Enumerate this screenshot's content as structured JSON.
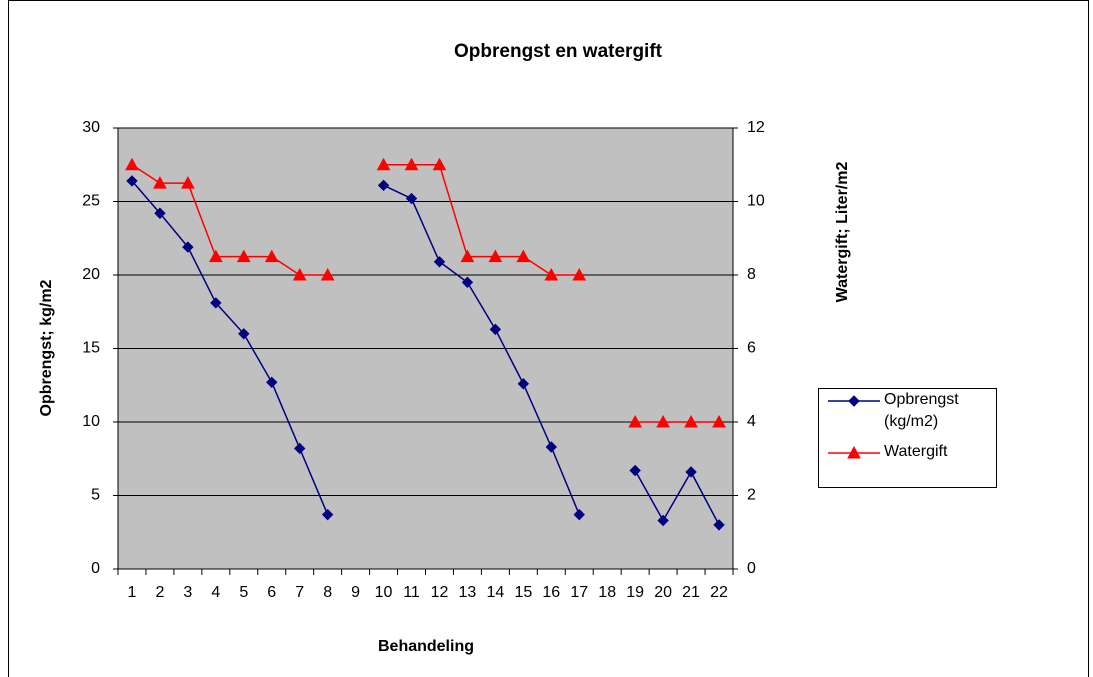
{
  "chart_data": {
    "type": "line",
    "title": "Opbrengst en watergift",
    "x_label": "Behandeling",
    "y_label": "Opbrengst; kg/m2",
    "y2_label": "Watergift; Liter/m2",
    "categories": [
      "1",
      "2",
      "3",
      "4",
      "5",
      "6",
      "7",
      "8",
      "9",
      "10",
      "11",
      "12",
      "13",
      "14",
      "15",
      "16",
      "17",
      "18",
      "19",
      "20",
      "21",
      "22"
    ],
    "series": [
      {
        "name": "Opbrengst (kg/m2)",
        "color": "#000080",
        "marker": "diamond",
        "values": [
          26.4,
          24.2,
          21.9,
          18.1,
          16.0,
          12.7,
          8.2,
          3.7,
          null,
          26.1,
          25.2,
          20.9,
          19.5,
          16.3,
          12.6,
          8.3,
          3.7,
          null,
          6.7,
          3.3,
          6.6,
          3.0
        ]
      },
      {
        "name": "Watergift",
        "color": "#ff0000",
        "marker": "triangle",
        "axis": "y2",
        "values": [
          11,
          10.5,
          10.5,
          8.5,
          8.5,
          8.5,
          8,
          8,
          null,
          11,
          11,
          11,
          8.5,
          8.5,
          8.5,
          8,
          8,
          null,
          4,
          4,
          4,
          4
        ]
      }
    ],
    "ylim": [
      0,
      30
    ],
    "yticks": [
      0,
      5,
      10,
      15,
      20,
      25,
      30
    ],
    "y2lim": [
      0,
      12
    ],
    "y2ticks": [
      0,
      2,
      4,
      6,
      8,
      10,
      12
    ],
    "grid": true,
    "legend": "right"
  }
}
